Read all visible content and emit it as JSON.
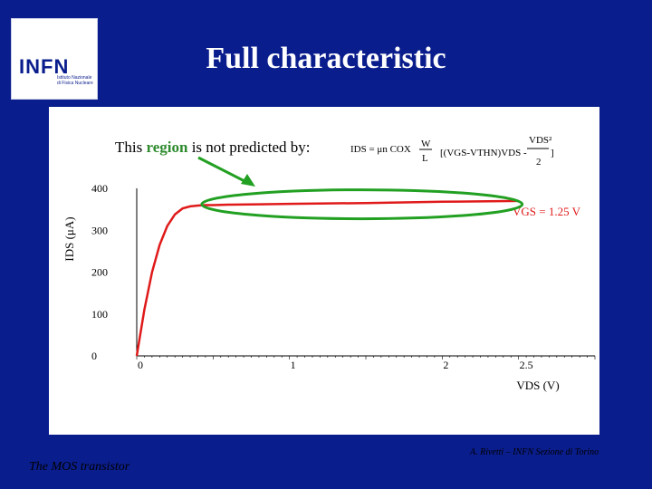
{
  "slide": {
    "title": "Full characteristic",
    "footer_left": "The MOS transistor",
    "footer_right": "A. Rivetti – INFN Sezione di Torino"
  },
  "logo": {
    "text": "INFN",
    "subtitle": "Istituto Nazionale di Fisica Nucleare"
  },
  "annotation": {
    "text_before": "This ",
    "highlight": "region",
    "text_after": " is not predicted by:",
    "highlight_color": "#2e8b2e",
    "formula_lhs": "IDS = μn COX",
    "formula_frac_num": "W",
    "formula_frac_den": "L",
    "formula_bracket": "[(VGS-VTHN)VDS -",
    "formula_vds2_num": "VDS²",
    "formula_vds2_den": "2",
    "formula_close": "]"
  },
  "chart_data": {
    "type": "line",
    "xlabel": "VDS (V)",
    "ylabel": "IDS (μA)",
    "xticks": [
      "0",
      "1",
      "2",
      "2.5"
    ],
    "yticks": [
      "0",
      "100",
      "200",
      "300",
      "400"
    ],
    "xlim": [
      0,
      3
    ],
    "ylim": [
      0,
      400
    ],
    "series": [
      {
        "name": "VGS = 1.25 V",
        "color": "#e01a1a",
        "x": [
          0,
          0.05,
          0.1,
          0.15,
          0.2,
          0.25,
          0.3,
          0.35,
          0.4,
          0.45,
          0.5,
          0.6,
          0.8,
          1.0,
          1.5,
          2.0,
          2.5
        ],
        "y": [
          0,
          110,
          200,
          265,
          310,
          338,
          352,
          357,
          359,
          360,
          360,
          361,
          362,
          363,
          365,
          368,
          370
        ]
      }
    ],
    "highlight_ellipse_color": "#22a022",
    "arrow_color": "#22a022"
  }
}
